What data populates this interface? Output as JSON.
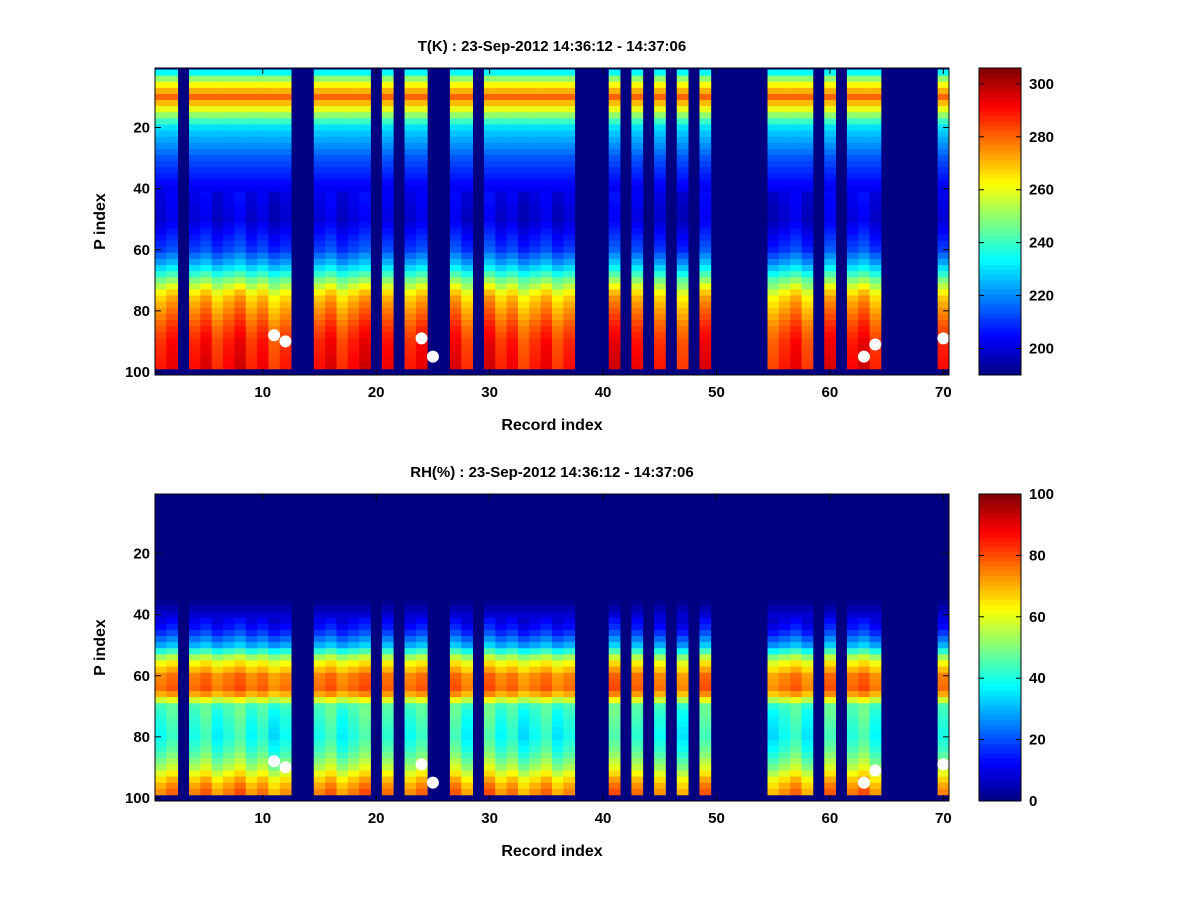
{
  "chart_data": [
    {
      "type": "heatmap",
      "title": "T(K) : 23-Sep-2012 14:36:12 - 14:37:06",
      "xlabel": "Record index",
      "ylabel": "P index",
      "xlim": [
        0.5,
        70.5
      ],
      "ylim": [
        0.5,
        101
      ],
      "y_reversed": true,
      "x_ticks": [
        10,
        20,
        30,
        40,
        50,
        60,
        70
      ],
      "y_ticks": [
        20,
        40,
        60,
        80,
        100
      ],
      "colorbar": {
        "colormap": "jet",
        "range": [
          190,
          306
        ],
        "ticks": [
          200,
          220,
          240,
          260,
          280,
          300
        ]
      },
      "fill_value": 190,
      "fill_records": [
        3,
        13,
        14,
        20,
        22,
        25,
        26,
        29,
        38,
        39,
        40,
        42,
        44,
        46,
        48,
        50,
        51,
        52,
        53,
        54,
        59,
        61,
        65,
        66,
        67,
        68,
        69
      ],
      "profile": {
        "p_index": [
          1,
          5,
          10,
          20,
          30,
          40,
          50,
          60,
          65,
          70,
          75,
          80,
          85,
          90,
          95,
          98
        ],
        "value": [
          226,
          258,
          280,
          230,
          214,
          203,
          200,
          212,
          226,
          248,
          268,
          276,
          283,
          288,
          290,
          291
        ]
      },
      "markers": [
        {
          "record": 11,
          "p_index": 88
        },
        {
          "record": 12,
          "p_index": 90
        },
        {
          "record": 24,
          "p_index": 89
        },
        {
          "record": 25,
          "p_index": 95
        },
        {
          "record": 63,
          "p_index": 95
        },
        {
          "record": 64,
          "p_index": 91
        },
        {
          "record": 70,
          "p_index": 89
        }
      ]
    },
    {
      "type": "heatmap",
      "title": "RH(%) : 23-Sep-2012 14:36:12 - 14:37:06",
      "xlabel": "Record index",
      "ylabel": "P index",
      "xlim": [
        0.5,
        70.5
      ],
      "ylim": [
        0.5,
        101
      ],
      "y_reversed": true,
      "x_ticks": [
        10,
        20,
        30,
        40,
        50,
        60,
        70
      ],
      "y_ticks": [
        20,
        40,
        60,
        80,
        100
      ],
      "colorbar": {
        "colormap": "jet",
        "range": [
          0,
          100
        ],
        "ticks": [
          0,
          20,
          40,
          60,
          80,
          100
        ]
      },
      "fill_value": 0,
      "fill_records": [
        3,
        13,
        14,
        20,
        22,
        25,
        26,
        29,
        38,
        39,
        40,
        42,
        44,
        46,
        48,
        50,
        51,
        52,
        53,
        54,
        59,
        61,
        65,
        66,
        67,
        68,
        69
      ],
      "profile": {
        "p_index": [
          1,
          35,
          40,
          45,
          50,
          55,
          60,
          65,
          70,
          75,
          80,
          85,
          90,
          95,
          98
        ],
        "value": [
          0,
          0,
          8,
          15,
          30,
          60,
          75,
          78,
          45,
          42,
          40,
          45,
          55,
          70,
          75
        ]
      },
      "markers": [
        {
          "record": 11,
          "p_index": 88
        },
        {
          "record": 12,
          "p_index": 90
        },
        {
          "record": 24,
          "p_index": 89
        },
        {
          "record": 25,
          "p_index": 95
        },
        {
          "record": 63,
          "p_index": 95
        },
        {
          "record": 64,
          "p_index": 91
        },
        {
          "record": 70,
          "p_index": 89
        }
      ]
    }
  ]
}
